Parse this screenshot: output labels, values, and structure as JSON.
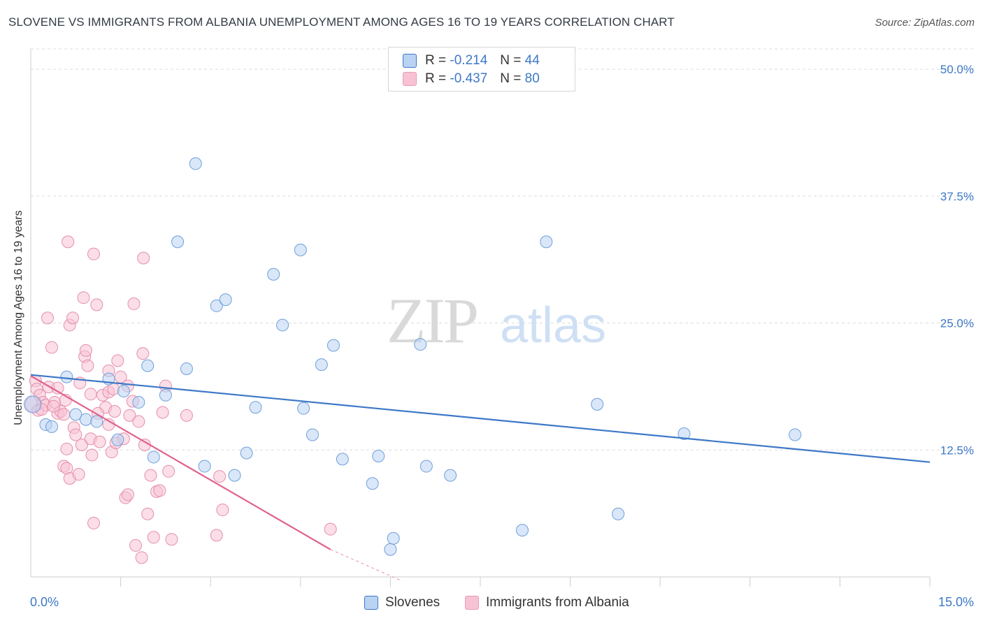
{
  "header": {
    "title": "SLOVENE VS IMMIGRANTS FROM ALBANIA UNEMPLOYMENT AMONG AGES 16 TO 19 YEARS CORRELATION CHART",
    "source": "Source: ZipAtlas.com"
  },
  "watermark": {
    "zip": "ZIP",
    "atlas": "atlas"
  },
  "colors": {
    "blue": "#3d78c8",
    "pink": "#e0628f",
    "blue_fill": "#bad3f2",
    "pink_fill": "#f7c3d4"
  },
  "legend": {
    "r_label": "R =",
    "n_label": "N =",
    "series": [
      {
        "r": "-0.214",
        "n": "44"
      },
      {
        "r": "-0.437",
        "n": "80"
      }
    ]
  },
  "chart_data": {
    "type": "scatter",
    "title": "SLOVENE VS IMMIGRANTS FROM ALBANIA UNEMPLOYMENT AMONG AGES 16 TO 19 YEARS CORRELATION CHART",
    "xlabel": "",
    "ylabel": "Unemployment Among Ages 16 to 19 years",
    "xlim": [
      0,
      15
    ],
    "ylim": [
      0,
      52
    ],
    "x_tick_labels": [
      "0.0%",
      "15.0%"
    ],
    "y_ticks": [
      {
        "value": 12.5,
        "label": "12.5%"
      },
      {
        "value": 25.0,
        "label": "25.0%"
      },
      {
        "value": 37.5,
        "label": "37.5%"
      },
      {
        "value": 50.0,
        "label": "50.0%"
      }
    ],
    "grid": true,
    "legend_position": "top-center",
    "series": [
      {
        "name": "Slovenes",
        "color": "#3d78c8",
        "trend": {
          "x": [
            0,
            15
          ],
          "y": [
            19.9,
            11.3
          ]
        },
        "points": [
          {
            "x": 0.03,
            "y": 17.0,
            "big": true
          },
          {
            "x": 0.25,
            "y": 15.0
          },
          {
            "x": 0.35,
            "y": 14.8
          },
          {
            "x": 0.6,
            "y": 19.7
          },
          {
            "x": 0.75,
            "y": 16.0
          },
          {
            "x": 0.92,
            "y": 15.5
          },
          {
            "x": 1.1,
            "y": 15.3
          },
          {
            "x": 1.3,
            "y": 19.5
          },
          {
            "x": 1.45,
            "y": 13.5
          },
          {
            "x": 1.55,
            "y": 18.3
          },
          {
            "x": 1.8,
            "y": 17.2
          },
          {
            "x": 1.95,
            "y": 20.8
          },
          {
            "x": 2.05,
            "y": 11.8
          },
          {
            "x": 2.25,
            "y": 17.9
          },
          {
            "x": 2.45,
            "y": 33.0
          },
          {
            "x": 2.6,
            "y": 20.5
          },
          {
            "x": 2.75,
            "y": 40.7
          },
          {
            "x": 2.9,
            "y": 10.9
          },
          {
            "x": 3.1,
            "y": 26.7
          },
          {
            "x": 3.25,
            "y": 27.3
          },
          {
            "x": 3.4,
            "y": 10.0
          },
          {
            "x": 3.6,
            "y": 12.2
          },
          {
            "x": 3.75,
            "y": 16.7
          },
          {
            "x": 4.05,
            "y": 29.8
          },
          {
            "x": 4.2,
            "y": 24.8
          },
          {
            "x": 4.5,
            "y": 32.2
          },
          {
            "x": 4.55,
            "y": 16.6
          },
          {
            "x": 4.7,
            "y": 14.0
          },
          {
            "x": 4.85,
            "y": 20.9
          },
          {
            "x": 5.05,
            "y": 22.8
          },
          {
            "x": 5.2,
            "y": 11.6
          },
          {
            "x": 5.7,
            "y": 9.2
          },
          {
            "x": 5.8,
            "y": 11.9
          },
          {
            "x": 6.0,
            "y": 2.7
          },
          {
            "x": 6.05,
            "y": 3.8
          },
          {
            "x": 6.5,
            "y": 22.9
          },
          {
            "x": 6.6,
            "y": 10.9
          },
          {
            "x": 7.0,
            "y": 10.0
          },
          {
            "x": 8.2,
            "y": 4.6
          },
          {
            "x": 8.6,
            "y": 33.0
          },
          {
            "x": 9.45,
            "y": 17.0
          },
          {
            "x": 9.8,
            "y": 6.2
          },
          {
            "x": 10.9,
            "y": 14.1
          },
          {
            "x": 12.75,
            "y": 14.0
          }
        ]
      },
      {
        "name": "Immigrants from Albania",
        "color": "#e0628f",
        "trend": {
          "x": [
            0,
            5
          ],
          "y": [
            19.8,
            2.7
          ]
        },
        "trend_dashed": {
          "x": [
            5,
            6.2
          ],
          "y": [
            2.7,
            -1.4
          ]
        },
        "points": [
          {
            "x": 0.05,
            "y": 17.0,
            "big": true
          },
          {
            "x": 0.08,
            "y": 19.3
          },
          {
            "x": 0.1,
            "y": 18.5
          },
          {
            "x": 0.12,
            "y": 16.4
          },
          {
            "x": 0.15,
            "y": 17.9
          },
          {
            "x": 0.2,
            "y": 17.2
          },
          {
            "x": 0.25,
            "y": 16.9
          },
          {
            "x": 0.28,
            "y": 25.5
          },
          {
            "x": 0.3,
            "y": 18.7
          },
          {
            "x": 0.35,
            "y": 22.6
          },
          {
            "x": 0.4,
            "y": 17.2
          },
          {
            "x": 0.45,
            "y": 18.6
          },
          {
            "x": 0.45,
            "y": 16.1
          },
          {
            "x": 0.5,
            "y": 16.3
          },
          {
            "x": 0.55,
            "y": 10.9
          },
          {
            "x": 0.55,
            "y": 16.0
          },
          {
            "x": 0.6,
            "y": 12.6
          },
          {
            "x": 0.6,
            "y": 10.7
          },
          {
            "x": 0.62,
            "y": 33.0
          },
          {
            "x": 0.65,
            "y": 24.8
          },
          {
            "x": 0.65,
            "y": 9.7
          },
          {
            "x": 0.7,
            "y": 25.5
          },
          {
            "x": 0.72,
            "y": 14.7
          },
          {
            "x": 0.75,
            "y": 14.0
          },
          {
            "x": 0.8,
            "y": 10.1
          },
          {
            "x": 0.82,
            "y": 19.1
          },
          {
            "x": 0.85,
            "y": 13.0
          },
          {
            "x": 0.88,
            "y": 27.5
          },
          {
            "x": 0.9,
            "y": 21.7
          },
          {
            "x": 0.92,
            "y": 22.3
          },
          {
            "x": 0.95,
            "y": 20.8
          },
          {
            "x": 1.0,
            "y": 18.0
          },
          {
            "x": 1.0,
            "y": 13.6
          },
          {
            "x": 1.02,
            "y": 12.0
          },
          {
            "x": 1.05,
            "y": 5.3
          },
          {
            "x": 1.05,
            "y": 31.8
          },
          {
            "x": 1.1,
            "y": 26.8
          },
          {
            "x": 1.15,
            "y": 13.3
          },
          {
            "x": 1.2,
            "y": 17.9
          },
          {
            "x": 1.25,
            "y": 16.7
          },
          {
            "x": 1.3,
            "y": 20.3
          },
          {
            "x": 1.3,
            "y": 18.2
          },
          {
            "x": 1.3,
            "y": 15.0
          },
          {
            "x": 1.35,
            "y": 12.3
          },
          {
            "x": 1.4,
            "y": 16.3
          },
          {
            "x": 1.42,
            "y": 13.2
          },
          {
            "x": 1.45,
            "y": 21.3
          },
          {
            "x": 1.5,
            "y": 19.7
          },
          {
            "x": 1.55,
            "y": 13.6
          },
          {
            "x": 1.58,
            "y": 7.8
          },
          {
            "x": 1.62,
            "y": 18.8
          },
          {
            "x": 1.62,
            "y": 8.1
          },
          {
            "x": 1.65,
            "y": 15.9
          },
          {
            "x": 1.7,
            "y": 17.3
          },
          {
            "x": 1.72,
            "y": 26.9
          },
          {
            "x": 1.75,
            "y": 3.1
          },
          {
            "x": 1.8,
            "y": 15.3
          },
          {
            "x": 1.85,
            "y": 1.9
          },
          {
            "x": 1.87,
            "y": 22.0
          },
          {
            "x": 1.88,
            "y": 31.4
          },
          {
            "x": 1.9,
            "y": 13.0
          },
          {
            "x": 1.95,
            "y": 6.2
          },
          {
            "x": 2.0,
            "y": 10.0
          },
          {
            "x": 2.05,
            "y": 3.9
          },
          {
            "x": 2.1,
            "y": 8.4
          },
          {
            "x": 2.15,
            "y": 8.5
          },
          {
            "x": 2.2,
            "y": 16.2
          },
          {
            "x": 2.25,
            "y": 18.8
          },
          {
            "x": 2.3,
            "y": 10.4
          },
          {
            "x": 2.35,
            "y": 3.7
          },
          {
            "x": 2.6,
            "y": 15.9
          },
          {
            "x": 3.1,
            "y": 4.1
          },
          {
            "x": 3.15,
            "y": 9.9
          },
          {
            "x": 3.2,
            "y": 6.6
          },
          {
            "x": 5.0,
            "y": 4.7
          },
          {
            "x": 0.18,
            "y": 16.5
          },
          {
            "x": 0.38,
            "y": 16.8
          },
          {
            "x": 0.58,
            "y": 17.4
          },
          {
            "x": 1.12,
            "y": 16.1
          },
          {
            "x": 1.38,
            "y": 18.5
          }
        ]
      }
    ]
  },
  "bottom_legend": {
    "slovenes": "Slovenes",
    "albania": "Immigrants from Albania"
  }
}
